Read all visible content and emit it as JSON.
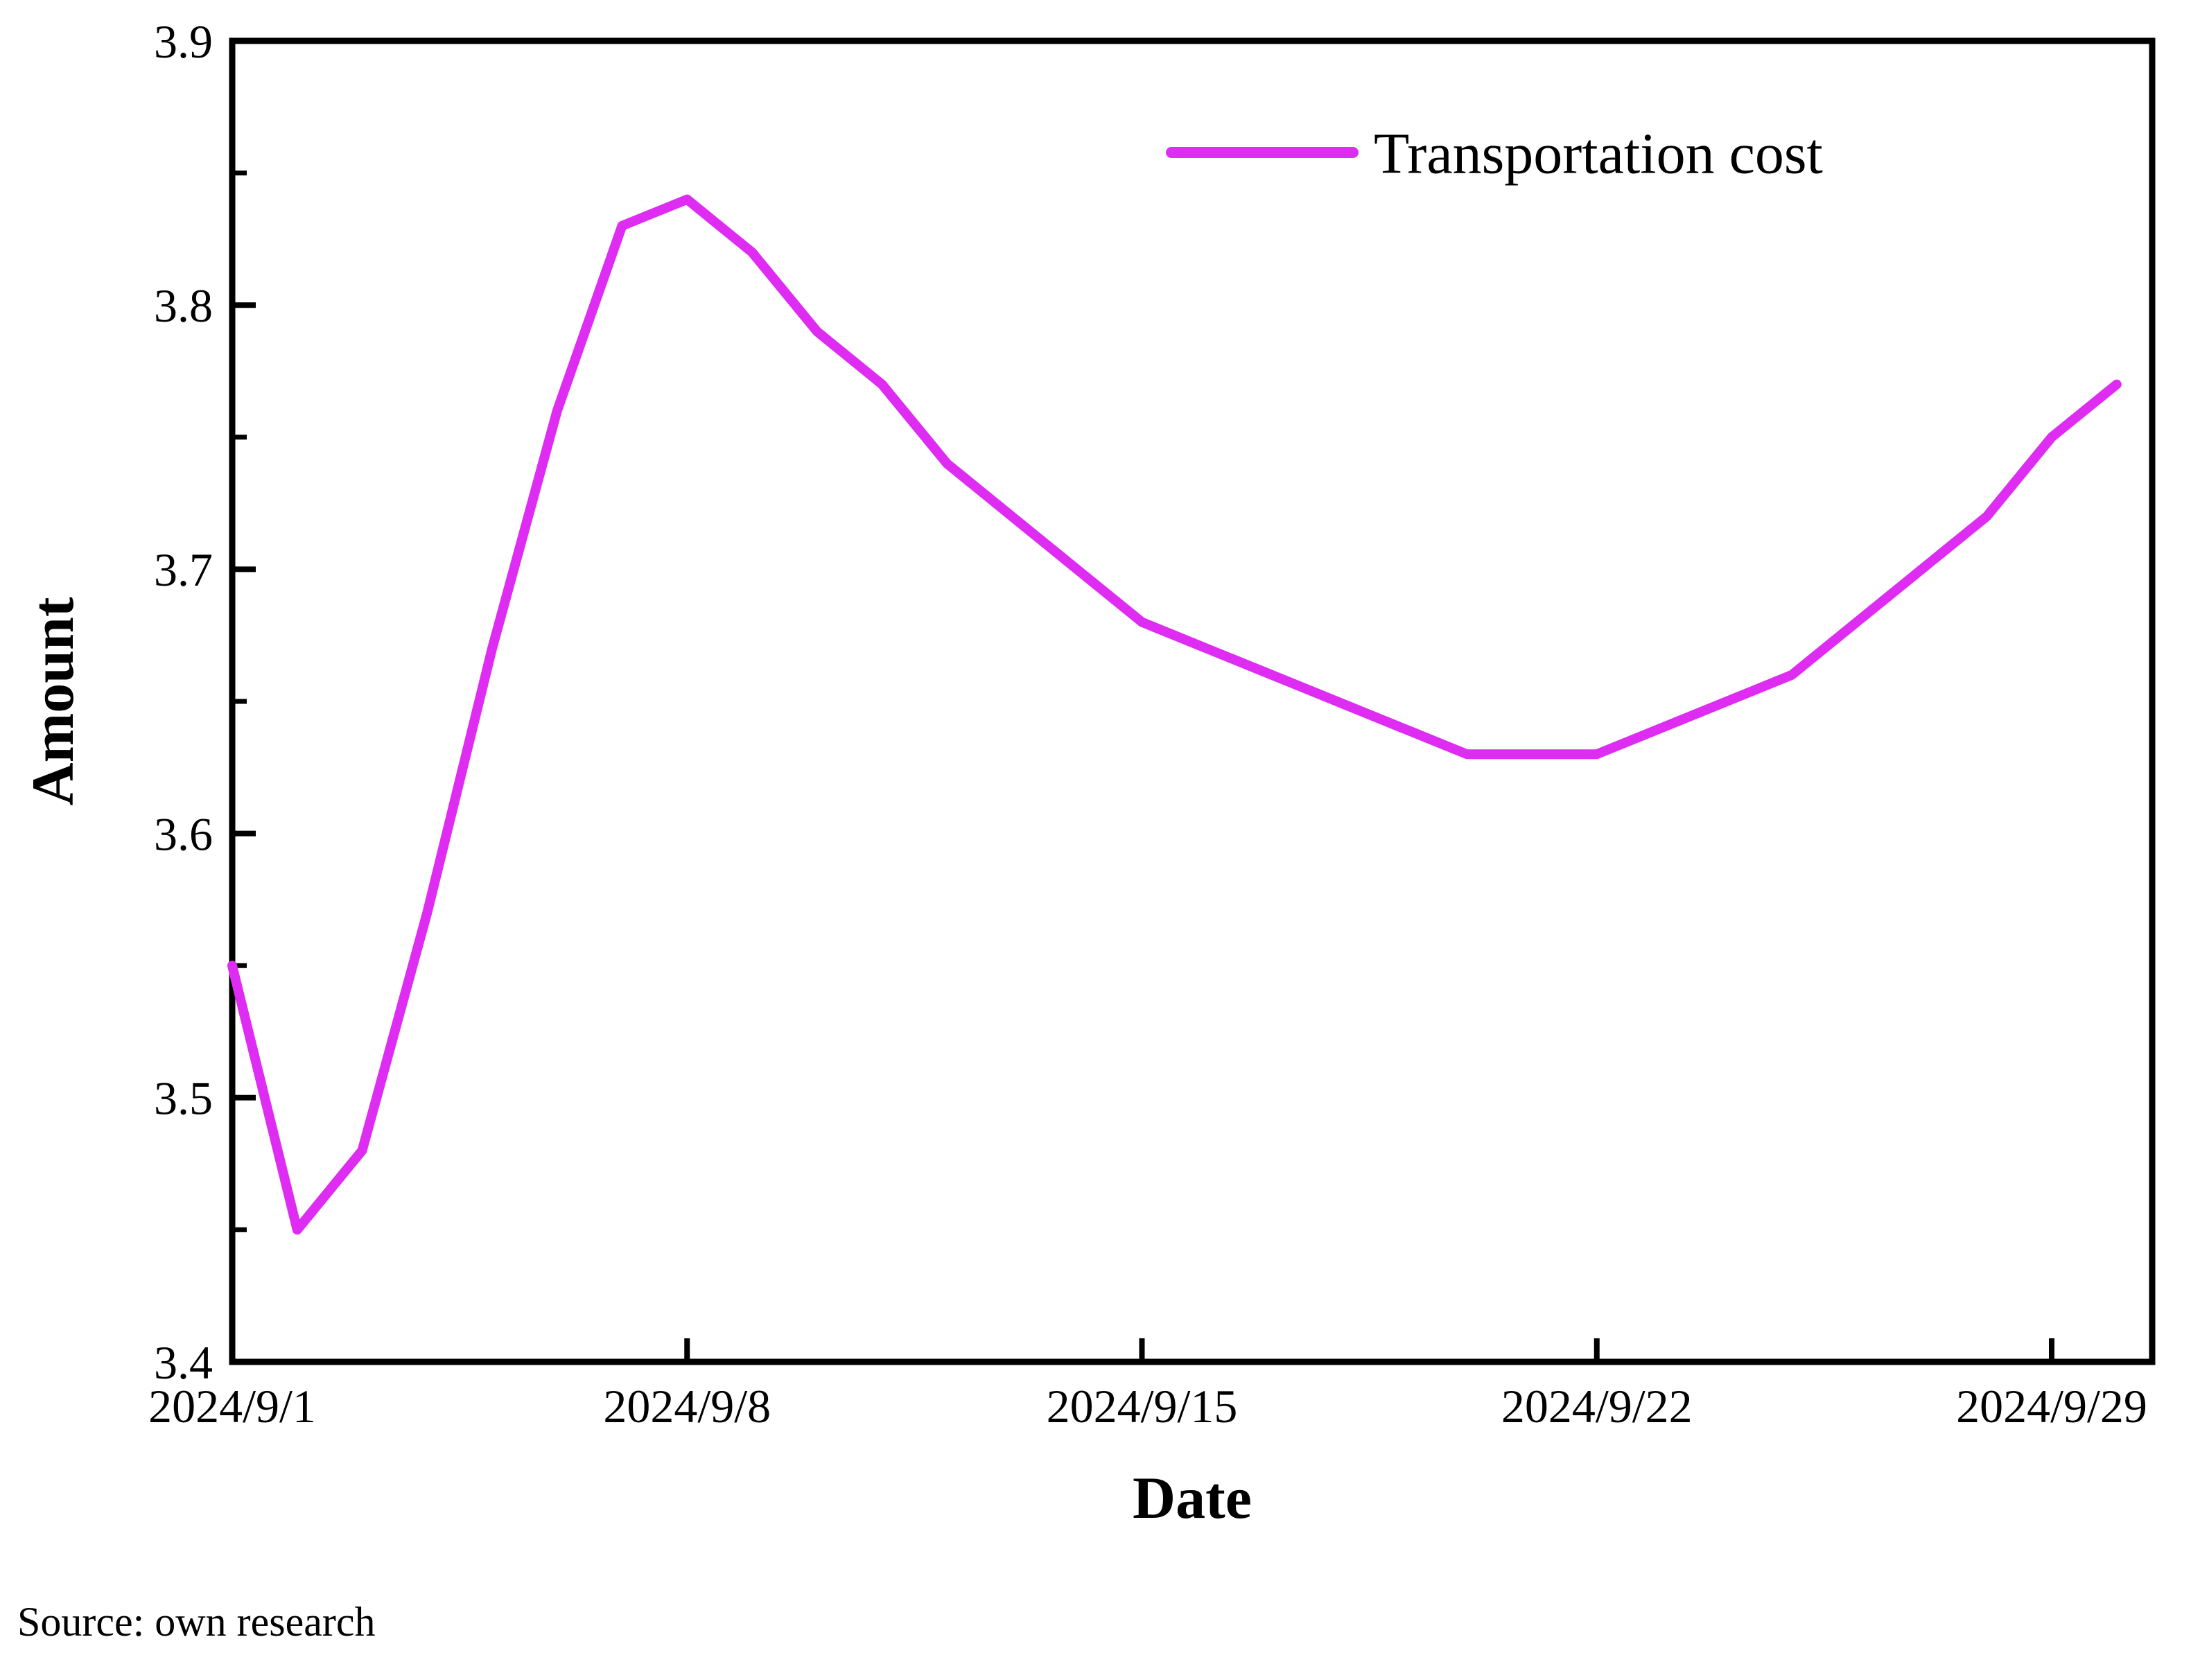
{
  "chart": {
    "legend_label": "Transportation cost",
    "x_axis_title": "Date",
    "y_axis_title": "Amount",
    "source_note": "Source: own research",
    "line_color": "#DE2CF3",
    "axis_color": "#000000",
    "background_color": "#FFFFFF"
  },
  "chart_data": {
    "type": "line",
    "title": "",
    "xlabel": "Date",
    "ylabel": "Amount",
    "grid": false,
    "legend_position": "top-right",
    "ylim": [
      3.4,
      3.9
    ],
    "y_major_step": 0.1,
    "y_minor_step": 0.05,
    "y_tick_labels": [
      "3.9",
      "3.8",
      "3.7",
      "3.6",
      "3.5",
      "3.4"
    ],
    "y_minor_tick_values": [
      3.85,
      3.75,
      3.65,
      3.55,
      3.45
    ],
    "x_ticks": [
      {
        "day": 1,
        "label": "2024/9/1"
      },
      {
        "day": 8,
        "label": "2024/9/8"
      },
      {
        "day": 15,
        "label": "2024/9/15"
      },
      {
        "day": 22,
        "label": "2024/9/22"
      },
      {
        "day": 29,
        "label": "2024/9/29"
      }
    ],
    "x": [
      "2024/9/1",
      "2024/9/2",
      "2024/9/3",
      "2024/9/4",
      "2024/9/5",
      "2024/9/6",
      "2024/9/7",
      "2024/9/8",
      "2024/9/9",
      "2024/9/10",
      "2024/9/11",
      "2024/9/12",
      "2024/9/13",
      "2024/9/14",
      "2024/9/15",
      "2024/9/16",
      "2024/9/17",
      "2024/9/18",
      "2024/9/19",
      "2024/9/20",
      "2024/9/21",
      "2024/9/22",
      "2024/9/23",
      "2024/9/24",
      "2024/9/25",
      "2024/9/26",
      "2024/9/27",
      "2024/9/28",
      "2024/9/29",
      "2024/9/30"
    ],
    "series": [
      {
        "name": "Transportation cost",
        "color": "#DE2CF3",
        "values": [
          3.55,
          3.45,
          3.48,
          3.57,
          3.67,
          3.76,
          3.83,
          3.84,
          3.82,
          3.79,
          3.77,
          3.74,
          3.72,
          3.7,
          3.68,
          3.67,
          3.66,
          3.65,
          3.64,
          3.63,
          3.63,
          3.63,
          3.64,
          3.65,
          3.66,
          3.68,
          3.7,
          3.72,
          3.75,
          3.77
        ]
      }
    ]
  }
}
